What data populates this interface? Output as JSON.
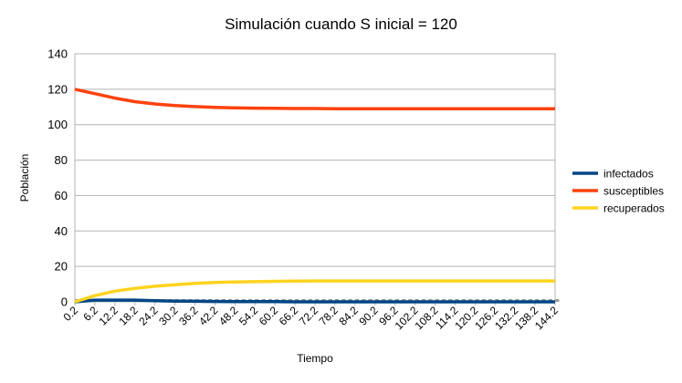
{
  "chart_data": {
    "type": "line",
    "title": "Simulación cuando S inicial = 120",
    "xlabel": "Tiempo",
    "ylabel": "Población",
    "ylim": [
      0,
      140
    ],
    "yticks": [
      0,
      20,
      40,
      60,
      80,
      100,
      120,
      140
    ],
    "grid": true,
    "legend_position": "right",
    "x": [
      0.2,
      6.2,
      12.2,
      18.2,
      24.2,
      30.2,
      36.2,
      42.2,
      48.2,
      54.2,
      60.2,
      66.2,
      72.2,
      78.2,
      84.2,
      90.2,
      96.2,
      102.2,
      108.2,
      114.2,
      120.2,
      126.2,
      132.2,
      138.2,
      144.2
    ],
    "x_tick_labels": [
      "0.2",
      "6.2",
      "12.2",
      "18.2",
      "24.2",
      "30.2",
      "36.2",
      "42.2",
      "48.2",
      "54.2",
      "60.2",
      "66.2",
      "72.2",
      "78.2",
      "84.2",
      "90.2",
      "96.2",
      "102.2",
      "108.2",
      "114.2",
      "120.2",
      "126.2",
      "132.2",
      "138.2",
      "144.2"
    ],
    "series": [
      {
        "name": "infectados",
        "color": "#004586",
        "values": [
          0,
          1,
          1,
          1,
          0.6,
          0.4,
          0.3,
          0.2,
          0.1,
          0.1,
          0.1,
          0,
          0,
          0,
          0,
          0,
          0,
          0,
          0,
          0,
          0,
          0,
          0,
          0,
          0
        ]
      },
      {
        "name": "susceptibles",
        "color": "#ff420e",
        "values": [
          120,
          117.5,
          115,
          113,
          111.7,
          110.8,
          110.2,
          109.8,
          109.5,
          109.3,
          109.2,
          109.1,
          109.1,
          109,
          109,
          109,
          109,
          109,
          109,
          109,
          109,
          109,
          109,
          109,
          109
        ]
      },
      {
        "name": "recuperados",
        "color": "#ffd320",
        "values": [
          0,
          3.5,
          6,
          7.6,
          8.8,
          9.7,
          10.4,
          10.9,
          11.2,
          11.4,
          11.6,
          11.7,
          11.8,
          11.8,
          11.8,
          11.8,
          11.8,
          11.8,
          11.8,
          11.8,
          11.8,
          11.8,
          11.8,
          11.8,
          11.8
        ]
      }
    ]
  }
}
